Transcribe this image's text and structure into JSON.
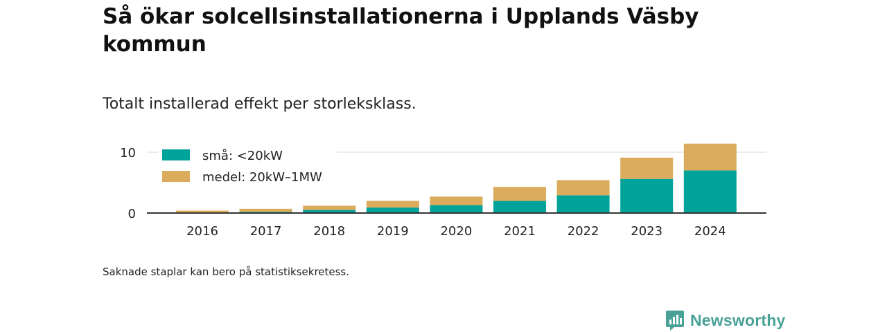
{
  "header": {
    "title": "Så ökar solcellsinstallationerna i Upplands Väsby kommun",
    "subtitle": "Totalt installerad effekt per storleksklass."
  },
  "footnote": "Saknade staplar kan bero på statistiksekretess.",
  "brand": {
    "name": "Newsworthy",
    "icon": "newsworthy-logo-icon",
    "color": "#4aa198"
  },
  "chart_data": {
    "type": "bar",
    "stacked": true,
    "categories": [
      "2016",
      "2017",
      "2018",
      "2019",
      "2020",
      "2021",
      "2022",
      "2023",
      "2024"
    ],
    "series": [
      {
        "name": "små: <20kW",
        "color": "#00a39a",
        "values": [
          0.1,
          0.2,
          0.5,
          0.9,
          1.3,
          2.0,
          2.9,
          5.6,
          7.0
        ]
      },
      {
        "name": "medel: 20kW–1MW",
        "color": "#dbac5b",
        "values": [
          0.3,
          0.5,
          0.7,
          1.1,
          1.4,
          2.3,
          2.5,
          3.5,
          4.4
        ]
      }
    ],
    "yticks": [
      0,
      10
    ],
    "ylim": [
      0,
      12
    ],
    "grid": true,
    "legend": "top-left",
    "xlabel": "",
    "ylabel": ""
  }
}
